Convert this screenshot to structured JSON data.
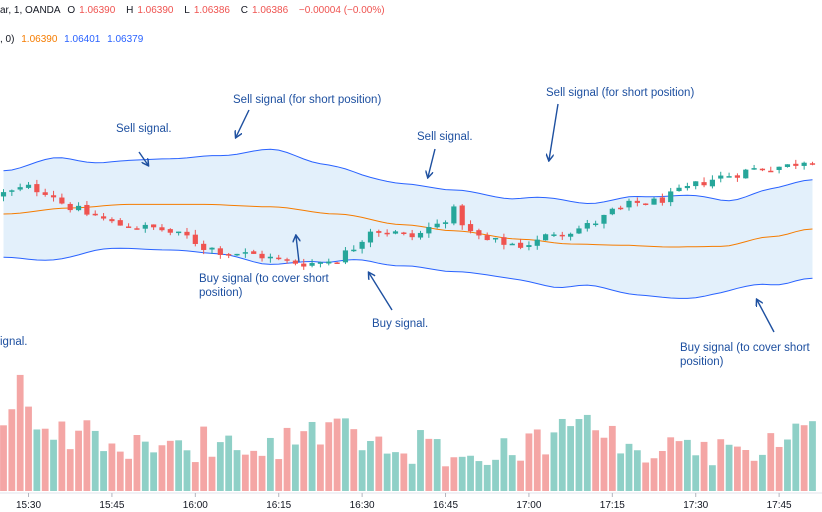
{
  "header": {
    "symbol_suffix": "ar, 1, OANDA",
    "o_label": "O",
    "o_value": "1.06390",
    "h_label": "H",
    "h_value": "1.06390",
    "l_label": "L",
    "l_value": "1.06386",
    "c_label": "C",
    "c_value": "1.06386",
    "change": "−0.00004 (−0.00%)",
    "bb_params": ", 0)",
    "bb_basis": "1.06390",
    "bb_upper": "1.06401",
    "bb_lower": "1.06379"
  },
  "colors": {
    "up": "#26a69a",
    "down": "#ef5350",
    "band_line": "#2962ff",
    "basis_line": "#f57c00",
    "band_fill": "#e3f0fb",
    "vol_up": "#8fd0c7",
    "vol_down": "#f4a6a5",
    "annotation": "#1e50a0"
  },
  "annotations": [
    {
      "id": "sell-1",
      "text": [
        "Sell signal."
      ]
    },
    {
      "id": "sell-2",
      "text": [
        "Sell signal (for short position)"
      ]
    },
    {
      "id": "sell-3",
      "text": [
        "Sell signal."
      ]
    },
    {
      "id": "sell-4",
      "text": [
        "Sell signal (for short position)"
      ]
    },
    {
      "id": "buy-1",
      "text": [
        "Buy signal (to cover short",
        "position)"
      ]
    },
    {
      "id": "buy-2",
      "text": [
        "Buy signal."
      ]
    },
    {
      "id": "buy-3",
      "text": [
        "Buy signal (to cover short",
        "position)"
      ]
    },
    {
      "id": "buy-0",
      "text": [
        "ignal."
      ]
    }
  ],
  "chart_data": {
    "type": "candlestick",
    "x_ticks": [
      "15:30",
      "15:45",
      "16:00",
      "16:15",
      "16:30",
      "16:45",
      "17:00",
      "17:15",
      "17:30",
      "17:45"
    ],
    "price_anchors": [
      [
        0,
        0.64
      ],
      [
        3,
        0.74
      ],
      [
        5,
        0.68
      ],
      [
        8,
        0.42
      ],
      [
        10,
        0.3
      ],
      [
        14,
        0.12
      ],
      [
        18,
        0.06
      ],
      [
        22,
        -0.08
      ],
      [
        24,
        -0.25
      ],
      [
        27,
        -0.34
      ],
      [
        30,
        -0.38
      ],
      [
        34,
        -0.5
      ],
      [
        37,
        -0.52
      ],
      [
        40,
        -0.45
      ],
      [
        42,
        -0.25
      ],
      [
        44,
        0.05
      ],
      [
        46,
        0.0
      ],
      [
        49,
        -0.08
      ],
      [
        52,
        0.12
      ],
      [
        54,
        0.35
      ],
      [
        56,
        -0.02
      ],
      [
        58,
        -0.15
      ],
      [
        60,
        -0.18
      ],
      [
        62,
        -0.22
      ],
      [
        64,
        -0.16
      ],
      [
        66,
        0.0
      ],
      [
        68,
        0.02
      ],
      [
        70,
        0.1
      ],
      [
        72,
        0.24
      ],
      [
        73,
        0.34
      ],
      [
        76,
        0.48
      ],
      [
        78,
        0.5
      ],
      [
        80,
        0.6
      ],
      [
        82,
        0.72
      ],
      [
        84,
        0.84
      ],
      [
        86,
        0.92
      ],
      [
        88,
        0.98
      ],
      [
        90,
        1.05
      ],
      [
        92,
        1.08
      ],
      [
        94,
        1.1
      ],
      [
        96,
        1.2
      ],
      [
        97,
        1.22
      ]
    ],
    "basis_anchors": [
      [
        0,
        0.3
      ],
      [
        8,
        0.4
      ],
      [
        15,
        0.46
      ],
      [
        24,
        0.46
      ],
      [
        32,
        0.42
      ],
      [
        40,
        0.3
      ],
      [
        48,
        0.12
      ],
      [
        54,
        0.02
      ],
      [
        62,
        -0.12
      ],
      [
        68,
        -0.2
      ],
      [
        74,
        -0.22
      ],
      [
        80,
        -0.25
      ],
      [
        86,
        -0.24
      ],
      [
        92,
        -0.08
      ],
      [
        97,
        0.05
      ]
    ],
    "band_half_anchors": [
      [
        0,
        0.72
      ],
      [
        6,
        0.85
      ],
      [
        12,
        0.72
      ],
      [
        20,
        0.76
      ],
      [
        26,
        0.82
      ],
      [
        32,
        0.96
      ],
      [
        38,
        0.82
      ],
      [
        44,
        0.7
      ],
      [
        50,
        0.68
      ],
      [
        54,
        0.68
      ],
      [
        60,
        0.66
      ],
      [
        66,
        0.74
      ],
      [
        70,
        0.68
      ],
      [
        76,
        0.82
      ],
      [
        82,
        0.86
      ],
      [
        88,
        0.74
      ],
      [
        94,
        0.82
      ],
      [
        97,
        0.82
      ]
    ],
    "volume_anchors": [
      [
        0,
        0.82
      ],
      [
        3,
        1.0
      ],
      [
        6,
        0.6
      ],
      [
        10,
        0.5
      ],
      [
        15,
        0.4
      ],
      [
        20,
        0.38
      ],
      [
        25,
        0.45
      ],
      [
        30,
        0.5
      ],
      [
        35,
        0.45
      ],
      [
        40,
        0.55
      ],
      [
        45,
        0.4
      ],
      [
        50,
        0.42
      ],
      [
        55,
        0.35
      ],
      [
        60,
        0.38
      ],
      [
        65,
        0.5
      ],
      [
        70,
        0.52
      ],
      [
        75,
        0.4
      ],
      [
        80,
        0.38
      ],
      [
        85,
        0.35
      ],
      [
        90,
        0.42
      ],
      [
        97,
        0.52
      ]
    ],
    "volume_max": 1.0
  }
}
